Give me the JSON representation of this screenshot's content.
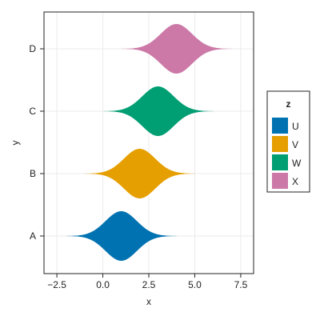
{
  "chart_data": {
    "type": "area",
    "subtype": "ridgeline-density",
    "xlabel": "x",
    "ylabel": "y",
    "xlim": [
      -3.2,
      8.2
    ],
    "x_ticks": [
      -2.5,
      0.0,
      2.5,
      5.0,
      7.5
    ],
    "x_tick_labels": [
      "−2.5",
      "0.0",
      "2.5",
      "5.0",
      "7.5"
    ],
    "categories": [
      "A",
      "B",
      "C",
      "D"
    ],
    "grid": true,
    "legend": {
      "title": "z",
      "placement": "right",
      "entries": [
        "U",
        "V",
        "W",
        "X"
      ]
    },
    "series": [
      {
        "name": "U",
        "category": "A",
        "center": 1.0,
        "spread": 0.85,
        "extent": [
          -2.1,
          4.3
        ],
        "color": "#0072B2"
      },
      {
        "name": "V",
        "category": "B",
        "center": 2.0,
        "spread": 0.85,
        "extent": [
          -1.1,
          5.3
        ],
        "color": "#E69F00"
      },
      {
        "name": "W",
        "category": "C",
        "center": 3.0,
        "spread": 0.85,
        "extent": [
          -0.1,
          6.3
        ],
        "color": "#009E73"
      },
      {
        "name": "X",
        "category": "D",
        "center": 4.0,
        "spread": 0.85,
        "extent": [
          0.9,
          7.3
        ],
        "color": "#CC79A7"
      }
    ]
  }
}
